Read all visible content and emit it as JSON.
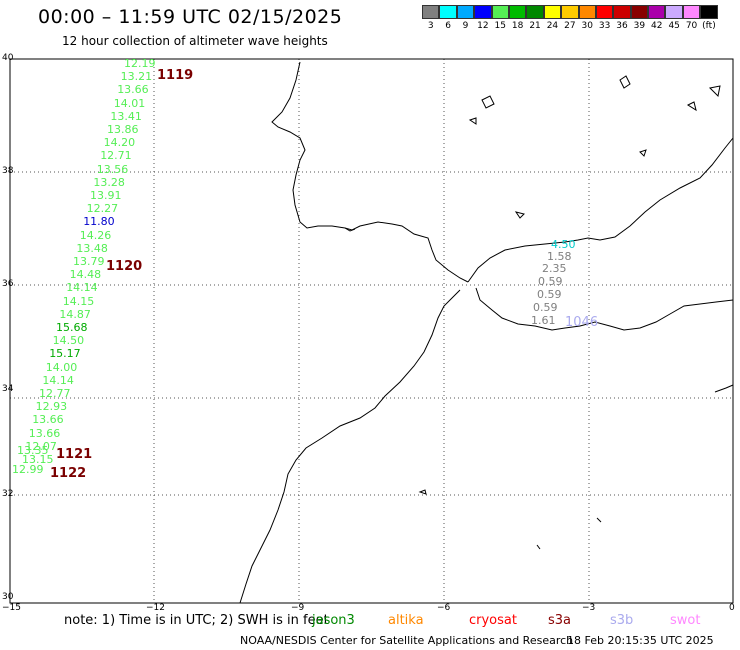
{
  "header": {
    "title": "00:00 – 11:59 UTC 02/15/2025",
    "subtitle": "12 hour collection of altimeter wave heights"
  },
  "legend": {
    "unit": "(ft)",
    "bins": [
      {
        "label": "3",
        "color": "#808080"
      },
      {
        "label": "6",
        "color": "#00ffff"
      },
      {
        "label": "9",
        "color": "#00aaff"
      },
      {
        "label": "12",
        "color": "#0000ff"
      },
      {
        "label": "15",
        "color": "#55ee55"
      },
      {
        "label": "18",
        "color": "#00bb00"
      },
      {
        "label": "21",
        "color": "#008800"
      },
      {
        "label": "24",
        "color": "#ffff00"
      },
      {
        "label": "27",
        "color": "#ffcc00"
      },
      {
        "label": "30",
        "color": "#ff8800"
      },
      {
        "label": "33",
        "color": "#ff0000"
      },
      {
        "label": "36",
        "color": "#cc0000"
      },
      {
        "label": "39",
        "color": "#880000"
      },
      {
        "label": "42",
        "color": "#aa00aa"
      },
      {
        "label": "45",
        "color": "#ccaaff"
      },
      {
        "label": "70",
        "color": "#ff88ff"
      },
      {
        "label": "(ft)",
        "color": "#000000"
      }
    ]
  },
  "axes": {
    "y_ticks": [
      "40",
      "38",
      "36",
      "34",
      "32",
      "30"
    ],
    "x_ticks": [
      "−15",
      "−12",
      "−9",
      "−6",
      "−3",
      "0"
    ]
  },
  "wave_heights": [
    {
      "text": "12.19",
      "color": "#55ee55"
    },
    {
      "text": "13.21",
      "color": "#55ee55"
    },
    {
      "text": "13.66",
      "color": "#55ee55"
    },
    {
      "text": "14.01",
      "color": "#55ee55"
    },
    {
      "text": "13.41",
      "color": "#55ee55"
    },
    {
      "text": "13.86",
      "color": "#55ee55"
    },
    {
      "text": "14.20",
      "color": "#55ee55"
    },
    {
      "text": "12.71",
      "color": "#55ee55"
    },
    {
      "text": "13.56",
      "color": "#55ee55"
    },
    {
      "text": "13.28",
      "color": "#55ee55"
    },
    {
      "text": "13.91",
      "color": "#55ee55"
    },
    {
      "text": "12.27",
      "color": "#55ee55"
    },
    {
      "text": "11.80",
      "color": "#0000cc"
    },
    {
      "text": "14.26",
      "color": "#55ee55"
    },
    {
      "text": "13.48",
      "color": "#55ee55"
    },
    {
      "text": "13.79",
      "color": "#55ee55"
    },
    {
      "text": "14.48",
      "color": "#55ee55"
    },
    {
      "text": "14.14",
      "color": "#55ee55"
    },
    {
      "text": "14.15",
      "color": "#55ee55"
    },
    {
      "text": "14.87",
      "color": "#55ee55"
    },
    {
      "text": "15.68",
      "color": "#00aa00"
    },
    {
      "text": "14.50",
      "color": "#55ee55"
    },
    {
      "text": "15.17",
      "color": "#00aa00"
    },
    {
      "text": "14.00",
      "color": "#55ee55"
    },
    {
      "text": "14.14",
      "color": "#55ee55"
    },
    {
      "text": "12.77",
      "color": "#55ee55"
    },
    {
      "text": "12.93",
      "color": "#55ee55"
    },
    {
      "text": "13.66",
      "color": "#55ee55"
    },
    {
      "text": "13.66",
      "color": "#55ee55"
    },
    {
      "text": "12.07",
      "color": "#55ee55"
    },
    {
      "text": "13.15",
      "color": "#55ee55"
    },
    {
      "text": "13.35",
      "color": "#55ee55"
    },
    {
      "text": "12.99",
      "color": "#55ee55"
    },
    {
      "text": "4.50",
      "color": "#00cccc"
    },
    {
      "text": "1.58",
      "color": "#808080"
    },
    {
      "text": "2.35",
      "color": "#808080"
    },
    {
      "text": "0.59",
      "color": "#808080"
    },
    {
      "text": "0.59",
      "color": "#808080"
    },
    {
      "text": "0.59",
      "color": "#808080"
    },
    {
      "text": "1.61",
      "color": "#808080"
    }
  ],
  "pass_labels": [
    {
      "text": "1119",
      "color": "#7a0000"
    },
    {
      "text": "1120",
      "color": "#7a0000"
    },
    {
      "text": "1121",
      "color": "#7a0000"
    },
    {
      "text": "1122",
      "color": "#7a0000"
    },
    {
      "text": "1046",
      "color": "#aaaaee"
    }
  ],
  "note": {
    "text": "note: 1) Time is in UTC; 2) SWH is in feet"
  },
  "satellites": [
    {
      "name": "jason3",
      "color": "#008800"
    },
    {
      "name": "altika",
      "color": "#ff8800"
    },
    {
      "name": "cryosat",
      "color": "#ff0000"
    },
    {
      "name": "s3a",
      "color": "#880000"
    },
    {
      "name": "s3b",
      "color": "#aaaaee"
    },
    {
      "name": "swot",
      "color": "#ff88ff"
    }
  ],
  "footer": {
    "credit": "NOAA/NESDIS Center for Satellite Applications and Research",
    "generated": "18 Feb 20:15:35 UTC 2025"
  }
}
